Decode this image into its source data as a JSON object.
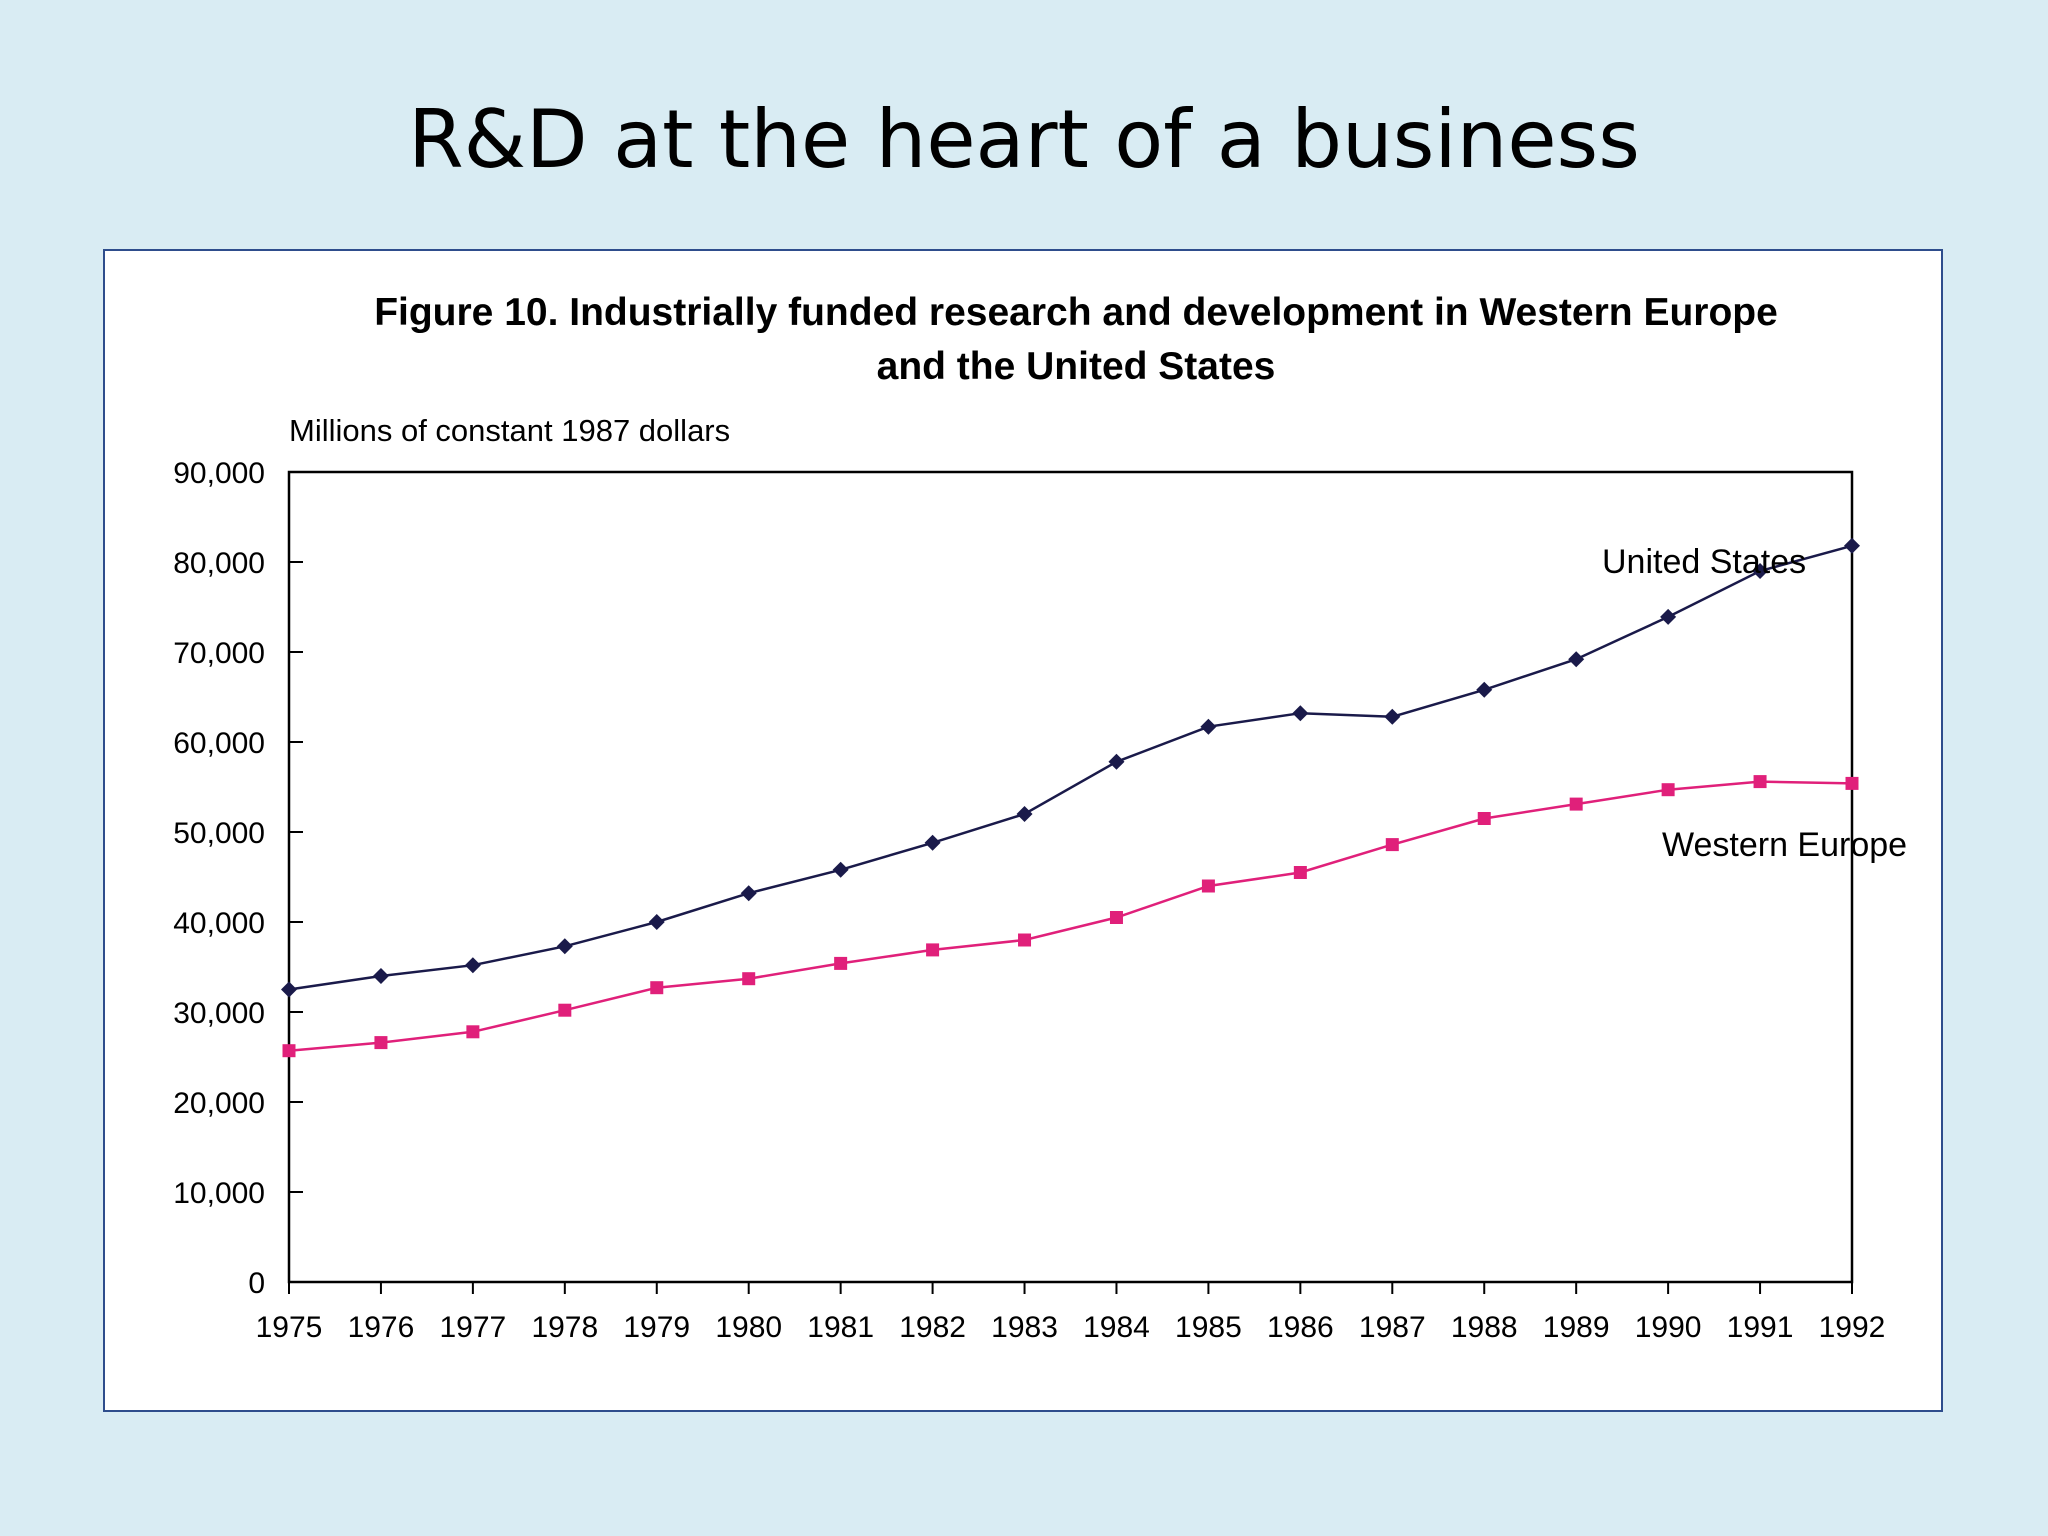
{
  "slide": {
    "title": "R&D at the heart of a business"
  },
  "colors": {
    "background": "#d9ecf3",
    "panel_border": "#2e4d8c",
    "united_states": "#1a1a4a",
    "western_europe": "#e0207a"
  },
  "chart_data": {
    "type": "line",
    "title": "Figure 10.   Industrially funded research and development in Western Europe",
    "title_line2": "and the United States",
    "ylabel": "Millions of constant 1987 dollars",
    "xlabel": "",
    "ylim": [
      0,
      90000
    ],
    "yticks": [
      0,
      10000,
      20000,
      30000,
      40000,
      50000,
      60000,
      70000,
      80000,
      90000
    ],
    "ytick_labels": [
      "0",
      "10,000",
      "20,000",
      "30,000",
      "40,000",
      "50,000",
      "60,000",
      "70,000",
      "80,000",
      "90,000"
    ],
    "grid": false,
    "legend": "inline labels",
    "x": [
      "1975",
      "1976",
      "1977",
      "1978",
      "1979",
      "1980",
      "1981",
      "1982",
      "1983",
      "1984",
      "1985",
      "1986",
      "1987",
      "1988",
      "1989",
      "1990",
      "1991",
      "1992"
    ],
    "series": [
      {
        "name": "United States",
        "marker": "diamond",
        "color": "#1a1a4a",
        "values": [
          32500,
          34000,
          35200,
          37300,
          40000,
          43200,
          45800,
          48800,
          52000,
          57800,
          61700,
          63200,
          62800,
          65800,
          69200,
          73900,
          79000,
          81800
        ]
      },
      {
        "name": "Western Europe",
        "marker": "square",
        "color": "#e0207a",
        "values": [
          25700,
          26600,
          27800,
          30200,
          32700,
          33700,
          35400,
          36900,
          38000,
          40500,
          44000,
          45500,
          48600,
          51500,
          53100,
          54700,
          55600,
          55400
        ]
      }
    ]
  }
}
